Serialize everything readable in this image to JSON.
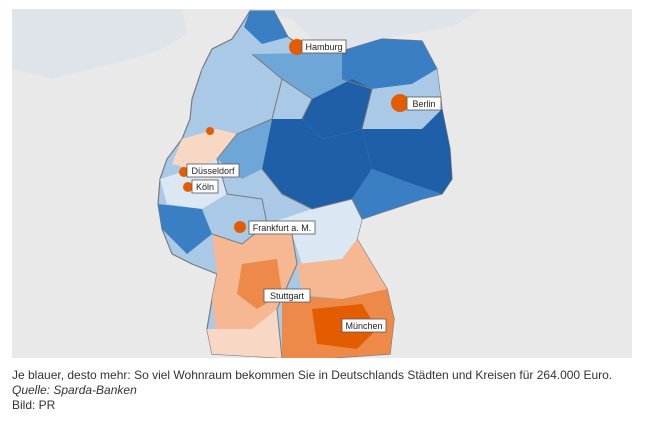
{
  "map": {
    "colors": {
      "background": "#e6e6e6",
      "water": "#dde3ea",
      "border_outline": "#7a7a7a",
      "scale": [
        "#e35d00",
        "#ee8a49",
        "#f6b893",
        "#f8d7c4",
        "#dbe7f3",
        "#a9c9e6",
        "#6ea6d8",
        "#3a7fc4",
        "#1f5fa8"
      ]
    },
    "cities": [
      {
        "id": "hamburg",
        "label": "Hamburg"
      },
      {
        "id": "berlin",
        "label": "Berlin"
      },
      {
        "id": "duesseldorf",
        "label": "Düsseldorf"
      },
      {
        "id": "koeln",
        "label": "Köln"
      },
      {
        "id": "frankfurt",
        "label": "Frankfurt a. M."
      },
      {
        "id": "stuttgart",
        "label": "Stuttgart"
      },
      {
        "id": "muenchen",
        "label": "München"
      }
    ]
  },
  "caption": {
    "text": "Je blauer, desto mehr: So viel Wohnraum bekommen Sie in Deutschlands Städten und Kreisen für 264.000 Euro.",
    "source": "Quelle: Sparda-Banken",
    "credit": "Bild:  PR"
  }
}
